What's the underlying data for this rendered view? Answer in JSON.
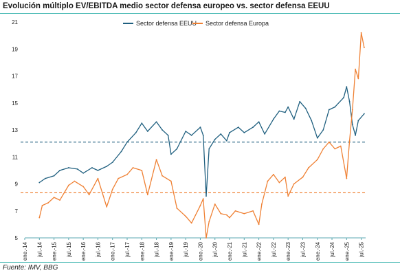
{
  "title": "Evolución múltiplo EV/EBITDA medio sector defensa europeo vs. sector defensa EEUU",
  "source": "Fuente: IMV, BBG",
  "chart_data": {
    "type": "line",
    "title": "Evolución múltiplo EV/EBITDA medio sector defensa europeo vs. sector defensa EEUU",
    "xlabel": "",
    "ylabel": "",
    "ylim": [
      5,
      21
    ],
    "yticks": [
      "5",
      "7",
      "9",
      "11",
      "13",
      "15",
      "17",
      "19",
      "21"
    ],
    "x_ticks": [
      "ene.-14",
      "jul.-14",
      "ene.-15",
      "jul.-15",
      "ene.-16",
      "jul.-16",
      "ene.-17",
      "jul.-17",
      "ene.-18",
      "jul.-18",
      "ene.-19",
      "jul.-19",
      "ene.-20",
      "jul.-20",
      "ene.-21",
      "jul.-21",
      "ene.-22",
      "jul.-22",
      "ene.-23",
      "jul.-23",
      "ene.-24",
      "jul.-24",
      "ene.-25",
      "jul.-25"
    ],
    "legend_position": "top-center",
    "grid": false,
    "colors": {
      "eeuu": "#1f5f7f",
      "europa": "#ef8033",
      "axis": "#5aa7b0"
    },
    "series": [
      {
        "name": "Sector defensa EEUU",
        "color": "#1f5f7f",
        "x": [
          2014.5,
          2014.7,
          2015.0,
          2015.2,
          2015.5,
          2015.8,
          2016.0,
          2016.3,
          2016.5,
          2016.8,
          2017.0,
          2017.3,
          2017.5,
          2017.8,
          2018.0,
          2018.2,
          2018.5,
          2018.7,
          2018.9,
          2019.0,
          2019.2,
          2019.5,
          2019.7,
          2020.0,
          2020.1,
          2020.2,
          2020.3,
          2020.5,
          2020.7,
          2020.9,
          2021.0,
          2021.3,
          2021.5,
          2021.8,
          2022.0,
          2022.2,
          2022.5,
          2022.7,
          2022.9,
          2023.0,
          2023.2,
          2023.4,
          2023.6,
          2023.8,
          2024.0,
          2024.2,
          2024.4,
          2024.6,
          2024.9,
          2025.0,
          2025.1,
          2025.2,
          2025.3,
          2025.4,
          2025.6
        ],
        "values": [
          9.1,
          9.4,
          9.6,
          10.0,
          10.2,
          10.1,
          9.8,
          10.2,
          10.0,
          10.3,
          10.6,
          11.4,
          12.1,
          12.8,
          13.5,
          12.9,
          13.6,
          13.0,
          12.6,
          11.2,
          11.6,
          12.9,
          12.6,
          13.2,
          12.6,
          8.1,
          11.6,
          12.3,
          12.7,
          12.2,
          12.8,
          13.2,
          12.8,
          13.2,
          13.6,
          12.7,
          13.8,
          14.4,
          14.3,
          14.7,
          13.8,
          15.1,
          14.6,
          13.7,
          12.4,
          13.0,
          14.5,
          14.7,
          15.4,
          16.2,
          15.1,
          13.4,
          12.6,
          13.7,
          14.2
        ]
      },
      {
        "name": "Sector defensa Europa",
        "color": "#ef8033",
        "x": [
          2014.5,
          2014.6,
          2014.8,
          2015.0,
          2015.2,
          2015.5,
          2015.7,
          2016.0,
          2016.2,
          2016.5,
          2016.8,
          2017.0,
          2017.2,
          2017.5,
          2017.7,
          2018.0,
          2018.2,
          2018.5,
          2018.7,
          2019.0,
          2019.2,
          2019.5,
          2019.7,
          2020.0,
          2020.1,
          2020.2,
          2020.3,
          2020.5,
          2020.7,
          2020.9,
          2021.0,
          2021.2,
          2021.5,
          2021.8,
          2022.0,
          2022.1,
          2022.3,
          2022.5,
          2022.7,
          2022.9,
          2023.0,
          2023.2,
          2023.5,
          2023.7,
          2024.0,
          2024.2,
          2024.4,
          2024.6,
          2024.8,
          2025.0,
          2025.1,
          2025.2,
          2025.3,
          2025.4,
          2025.5,
          2025.6
        ],
        "values": [
          6.5,
          7.4,
          7.6,
          8.0,
          7.8,
          8.9,
          9.2,
          8.8,
          8.2,
          9.4,
          7.3,
          8.6,
          9.4,
          9.7,
          10.2,
          10.0,
          8.2,
          10.8,
          9.6,
          9.2,
          7.2,
          6.6,
          6.1,
          7.4,
          7.9,
          5.0,
          6.2,
          7.5,
          6.8,
          6.7,
          6.5,
          7.0,
          6.8,
          7.0,
          6.0,
          7.5,
          9.2,
          9.7,
          9.1,
          9.5,
          8.1,
          9.0,
          9.5,
          10.2,
          10.8,
          11.6,
          12.1,
          11.6,
          11.8,
          9.4,
          12.2,
          14.5,
          17.5,
          16.8,
          20.2,
          19.1
        ]
      }
    ],
    "reference_lines": [
      {
        "series": "Sector defensa EEUU",
        "value": 12.1
      },
      {
        "series": "Sector defensa Europa",
        "value": 8.35
      }
    ]
  }
}
